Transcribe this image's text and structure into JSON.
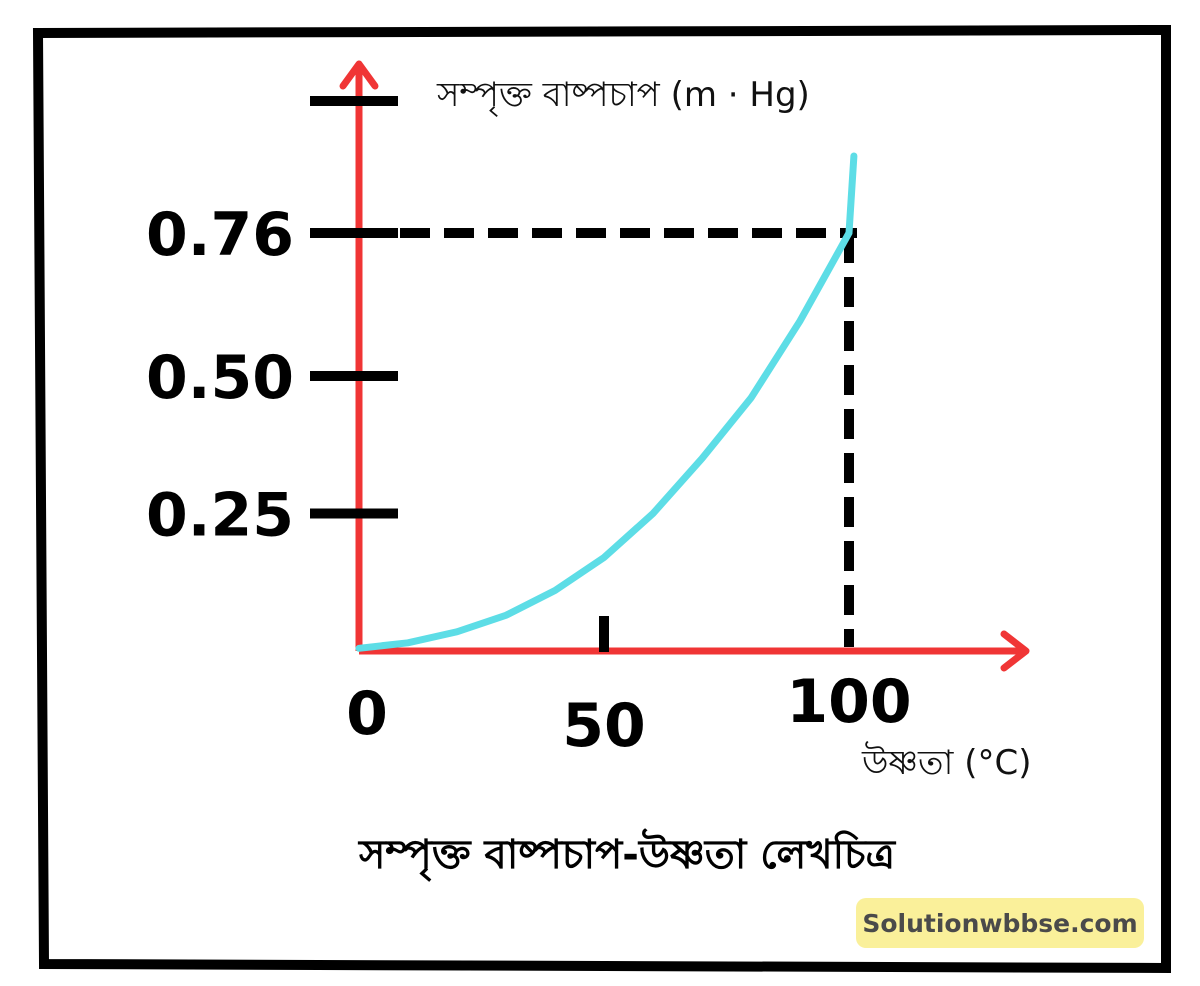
{
  "chart_data": {
    "type": "line",
    "y_axis_title": "সম্পৃক্ত বাষ্পচাপ (m · Hg)",
    "x_axis_title": "উষ্ণতা (°C)",
    "caption": "সম্পৃক্ত বাষ্পচাপ-উষ্ণতা লেখচিত্র",
    "x_ticks": [
      {
        "value": 0,
        "label": "0"
      },
      {
        "value": 50,
        "label": "50"
      },
      {
        "value": 100,
        "label": "100"
      }
    ],
    "y_ticks": [
      {
        "value": 0.25,
        "label": "0.25"
      },
      {
        "value": 0.5,
        "label": "0.50"
      },
      {
        "value": 0.76,
        "label": "0.76"
      },
      {
        "value": 1.0,
        "label": ""
      }
    ],
    "xlim": [
      0,
      137
    ],
    "ylim": [
      0,
      1.0
    ],
    "reference_point": {
      "x": 100,
      "y": 0.76
    },
    "series": [
      {
        "color": "#5ddde6",
        "x": [
          0,
          10,
          20,
          30,
          40,
          50,
          60,
          70,
          80,
          90,
          95,
          100,
          101
        ],
        "y": [
          0.005,
          0.015,
          0.035,
          0.065,
          0.11,
          0.17,
          0.25,
          0.35,
          0.46,
          0.6,
          0.68,
          0.76,
          0.9
        ]
      }
    ]
  },
  "colors": {
    "axis": "#f03535",
    "curve": "#5ddde6",
    "reference": "#000000",
    "frame": "#000000",
    "watermark_bg": "#faf09a"
  },
  "watermark": "Solutionwbbse.com"
}
